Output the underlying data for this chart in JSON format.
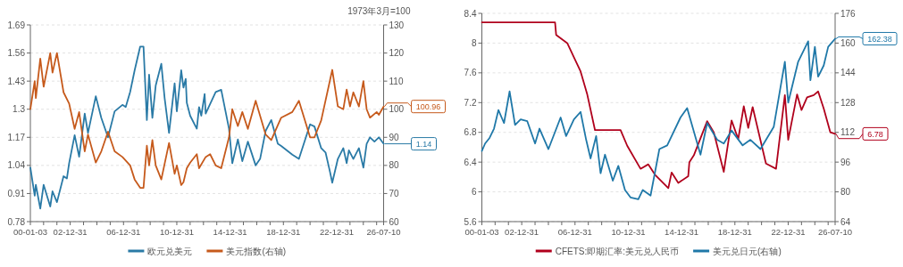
{
  "chart_data": [
    {
      "type": "line",
      "y2label": "1973年3月=100",
      "grid": "y",
      "legend": "bottom",
      "xlim": [
        "2000-01-03",
        "2026-07-10"
      ],
      "xticks": [
        {
          "value": "2000-01-03",
          "label": "00-01-03"
        },
        {
          "value": "2000-12-31",
          "label": null
        },
        {
          "value": "2001-12-31",
          "label": null
        },
        {
          "value": "2002-12-31",
          "label": "02-12-31"
        },
        {
          "value": "2003-12-31",
          "label": null
        },
        {
          "value": "2004-12-31",
          "label": null
        },
        {
          "value": "2005-12-31",
          "label": null
        },
        {
          "value": "2006-12-31",
          "label": "06-12-31"
        },
        {
          "value": "2007-12-31",
          "label": null
        },
        {
          "value": "2008-12-31",
          "label": null
        },
        {
          "value": "2009-12-31",
          "label": null
        },
        {
          "value": "2010-12-31",
          "label": "10-12-31"
        },
        {
          "value": "2011-12-31",
          "label": null
        },
        {
          "value": "2012-12-31",
          "label": null
        },
        {
          "value": "2013-12-31",
          "label": null
        },
        {
          "value": "2014-12-31",
          "label": "14-12-31"
        },
        {
          "value": "2015-12-31",
          "label": null
        },
        {
          "value": "2016-12-31",
          "label": null
        },
        {
          "value": "2017-12-31",
          "label": null
        },
        {
          "value": "2018-12-31",
          "label": "18-12-31"
        },
        {
          "value": "2019-12-31",
          "label": null
        },
        {
          "value": "2020-12-31",
          "label": null
        },
        {
          "value": "2021-12-31",
          "label": null
        },
        {
          "value": "2022-12-31",
          "label": "22-12-31"
        },
        {
          "value": "2023-12-31",
          "label": null
        },
        {
          "value": "2024-12-31",
          "label": null
        },
        {
          "value": "2025-12-31",
          "label": null
        },
        {
          "value": "2026-07-10",
          "label": "26-07-10"
        }
      ],
      "ylim": [
        0.78,
        1.69
      ],
      "yticks": [
        0.78,
        0.91,
        1.04,
        1.17,
        1.3,
        1.43,
        1.56,
        1.69
      ],
      "y2lim": [
        60,
        130
      ],
      "y2ticks": [
        60,
        70,
        80,
        90,
        100,
        110,
        120,
        130
      ],
      "series": [
        {
          "name": "欧元兑美元",
          "color": "#2a7aa6",
          "x": [
            "2000-01-03",
            "2000-05",
            "2000-06",
            "2000-10",
            "2001-01",
            "2001-07",
            "2001-09",
            "2002-01",
            "2002-07",
            "2002-10",
            "2002-12",
            "2003-05",
            "2003-09",
            "2004-02",
            "2004-05",
            "2004-12",
            "2005-05",
            "2005-11",
            "2006-05",
            "2006-12",
            "2007-03",
            "2007-07",
            "2007-11",
            "2008-04",
            "2008-07",
            "2008-10",
            "2008-12",
            "2009-03",
            "2009-06",
            "2009-11",
            "2010-02",
            "2010-06",
            "2010-11",
            "2011-01",
            "2011-05",
            "2011-07",
            "2011-09",
            "2011-10",
            "2012-01",
            "2012-07",
            "2012-09",
            "2012-11",
            "2013-02",
            "2013-03",
            "2013-12",
            "2014-05",
            "2014-12",
            "2015-03",
            "2015-08",
            "2015-12",
            "2016-05",
            "2016-12",
            "2017-04",
            "2017-09",
            "2018-02",
            "2018-08",
            "2018-11",
            "2019-09",
            "2020-03",
            "2021-01",
            "2021-05",
            "2021-11",
            "2022-03",
            "2022-07",
            "2022-09",
            "2023-02",
            "2023-07",
            "2023-10",
            "2023-12",
            "2024-04",
            "2024-09",
            "2025-01",
            "2025-04",
            "2025-07",
            "2025-11",
            "2026-03",
            "2026-07-10"
          ],
          "values": [
            1.03,
            0.9,
            0.95,
            0.84,
            0.95,
            0.85,
            0.92,
            0.87,
            0.99,
            0.98,
            1.05,
            1.18,
            1.08,
            1.28,
            1.19,
            1.36,
            1.26,
            1.17,
            1.29,
            1.32,
            1.31,
            1.38,
            1.48,
            1.59,
            1.59,
            1.25,
            1.46,
            1.26,
            1.41,
            1.51,
            1.35,
            1.19,
            1.42,
            1.29,
            1.48,
            1.4,
            1.44,
            1.33,
            1.27,
            1.21,
            1.31,
            1.27,
            1.37,
            1.28,
            1.38,
            1.39,
            1.21,
            1.05,
            1.16,
            1.06,
            1.15,
            1.04,
            1.07,
            1.2,
            1.25,
            1.14,
            1.13,
            1.09,
            1.07,
            1.23,
            1.22,
            1.12,
            1.1,
            1.01,
            0.96,
            1.07,
            1.12,
            1.05,
            1.11,
            1.07,
            1.12,
            1.03,
            1.14,
            1.17,
            1.15,
            1.17,
            1.14
          ],
          "value_labels": [
            null,
            null,
            null,
            null,
            null,
            null,
            null,
            null,
            null,
            null,
            null,
            null,
            null,
            null,
            null,
            null,
            null,
            null,
            null,
            null,
            null,
            null,
            null,
            null,
            null,
            null,
            null,
            null,
            null,
            null,
            null,
            null,
            null,
            null,
            null,
            null,
            null,
            null,
            null,
            null,
            null,
            null,
            null,
            null,
            null,
            null,
            null,
            null,
            null,
            null,
            null,
            null,
            null,
            null,
            null,
            null,
            null,
            null,
            null,
            null,
            null,
            null,
            null,
            null,
            null,
            null,
            null,
            null,
            null,
            null,
            null,
            null,
            null,
            null,
            null,
            null,
            "1.14"
          ]
        },
        {
          "name": "美元指数(右轴)",
          "color": "#c65a1c",
          "axis": "y2",
          "x": [
            "2000-01-03",
            "2000-05",
            "2000-06",
            "2000-10",
            "2001-01",
            "2001-07",
            "2001-09",
            "2002-01",
            "2002-07",
            "2002-12",
            "2003-05",
            "2003-09",
            "2004-02",
            "2004-05",
            "2004-12",
            "2005-05",
            "2005-11",
            "2006-05",
            "2006-12",
            "2007-07",
            "2007-11",
            "2008-04",
            "2008-07",
            "2008-10",
            "2008-12",
            "2009-03",
            "2009-06",
            "2009-11",
            "2010-06",
            "2010-11",
            "2011-01",
            "2011-05",
            "2011-07",
            "2011-10",
            "2012-01",
            "2012-07",
            "2012-09",
            "2013-03",
            "2013-07",
            "2013-12",
            "2014-05",
            "2014-12",
            "2015-03",
            "2015-08",
            "2015-12",
            "2016-05",
            "2016-12",
            "2017-09",
            "2018-02",
            "2018-11",
            "2019-09",
            "2020-03",
            "2021-01",
            "2021-05",
            "2021-11",
            "2022-09",
            "2023-02",
            "2023-07",
            "2023-10",
            "2024-01",
            "2024-04",
            "2024-09",
            "2025-01",
            "2025-04",
            "2025-07",
            "2026-01",
            "2026-03",
            "2026-07-10"
          ],
          "values": [
            100,
            110,
            104,
            118,
            108,
            120,
            113,
            120,
            106,
            102,
            93,
            99,
            85,
            91,
            81,
            85,
            92,
            85,
            83,
            80,
            75,
            72,
            72,
            87,
            80,
            89,
            80,
            75,
            88,
            77,
            80,
            73,
            74,
            79,
            81,
            84,
            79,
            83,
            84,
            80,
            79,
            90,
            100,
            94,
            99,
            93,
            103,
            91,
            89,
            97,
            99,
            103,
            90,
            90,
            96,
            114,
            101,
            100,
            107,
            101,
            106,
            101,
            110,
            100,
            97,
            99,
            98,
            100.96
          ],
          "value_labels": [
            null,
            null,
            null,
            null,
            null,
            null,
            null,
            null,
            null,
            null,
            null,
            null,
            null,
            null,
            null,
            null,
            null,
            null,
            null,
            null,
            null,
            null,
            null,
            null,
            null,
            null,
            null,
            null,
            null,
            null,
            null,
            null,
            null,
            null,
            null,
            null,
            null,
            null,
            null,
            null,
            null,
            null,
            null,
            null,
            null,
            null,
            null,
            null,
            null,
            null,
            null,
            null,
            null,
            null,
            null,
            null,
            null,
            null,
            null,
            null,
            null,
            null,
            null,
            null,
            null,
            null,
            null,
            "100.96"
          ]
        }
      ]
    },
    {
      "type": "line",
      "grid": "y",
      "legend": "bottom",
      "xlim": [
        "2000-01-03",
        "2026-07-10"
      ],
      "xticks": [
        {
          "value": "2000-01-03",
          "label": "00-01-03"
        },
        {
          "value": "2000-12-31",
          "label": null
        },
        {
          "value": "2001-12-31",
          "label": null
        },
        {
          "value": "2002-12-31",
          "label": "02-12-31"
        },
        {
          "value": "2003-12-31",
          "label": null
        },
        {
          "value": "2004-12-31",
          "label": null
        },
        {
          "value": "2005-12-31",
          "label": null
        },
        {
          "value": "2006-12-31",
          "label": "06-12-31"
        },
        {
          "value": "2007-12-31",
          "label": null
        },
        {
          "value": "2008-12-31",
          "label": null
        },
        {
          "value": "2009-12-31",
          "label": null
        },
        {
          "value": "2010-12-31",
          "label": "10-12-31"
        },
        {
          "value": "2011-12-31",
          "label": null
        },
        {
          "value": "2012-12-31",
          "label": null
        },
        {
          "value": "2013-12-31",
          "label": null
        },
        {
          "value": "2014-12-31",
          "label": "14-12-31"
        },
        {
          "value": "2015-12-31",
          "label": null
        },
        {
          "value": "2016-12-31",
          "label": null
        },
        {
          "value": "2017-12-31",
          "label": null
        },
        {
          "value": "2018-12-31",
          "label": "18-12-31"
        },
        {
          "value": "2019-12-31",
          "label": null
        },
        {
          "value": "2020-12-31",
          "label": null
        },
        {
          "value": "2021-12-31",
          "label": null
        },
        {
          "value": "2022-12-31",
          "label": "22-12-31"
        },
        {
          "value": "2023-12-31",
          "label": null
        },
        {
          "value": "2024-12-31",
          "label": null
        },
        {
          "value": "2025-12-31",
          "label": null
        },
        {
          "value": "2026-07-10",
          "label": "26-07-10"
        }
      ],
      "ylim": [
        5.6,
        8.4
      ],
      "yticks": [
        5.6,
        6,
        6.4,
        6.8,
        7.2,
        7.6,
        8,
        8.4
      ],
      "y2lim": [
        64,
        176
      ],
      "y2ticks": [
        64,
        80,
        96,
        112,
        128,
        144,
        160,
        176
      ],
      "series": [
        {
          "name": "CFETS:即期汇率:美元兑人民币",
          "color": "#b0001c",
          "x": [
            "2000-01-03",
            "2005-07",
            "2005-08",
            "2006-06",
            "2006-12",
            "2007-06",
            "2007-12",
            "2008-07",
            "2010-06",
            "2010-12",
            "2011-12",
            "2012-07",
            "2013-01",
            "2014-01",
            "2014-04",
            "2014-10",
            "2015-07",
            "2015-08",
            "2015-12",
            "2016-12",
            "2017-06",
            "2018-03",
            "2018-10",
            "2019-04",
            "2019-09",
            "2020-01",
            "2020-05",
            "2021-05",
            "2022-02",
            "2022-10",
            "2023-01",
            "2023-09",
            "2024-01",
            "2024-06",
            "2024-12",
            "2025-04",
            "2025-09",
            "2026-03",
            "2026-07-10"
          ],
          "values": [
            8.28,
            8.28,
            8.11,
            8.0,
            7.81,
            7.62,
            7.31,
            6.83,
            6.83,
            6.62,
            6.31,
            6.37,
            6.23,
            6.05,
            6.26,
            6.12,
            6.21,
            6.4,
            6.49,
            6.95,
            6.8,
            6.27,
            6.96,
            6.71,
            7.15,
            6.86,
            7.14,
            6.38,
            6.31,
            7.3,
            6.7,
            7.31,
            7.1,
            7.27,
            7.3,
            7.35,
            7.12,
            6.8,
            6.78
          ],
          "value_labels": [
            null,
            null,
            null,
            null,
            null,
            null,
            null,
            null,
            null,
            null,
            null,
            null,
            null,
            null,
            null,
            null,
            null,
            null,
            null,
            null,
            null,
            null,
            null,
            null,
            null,
            null,
            null,
            null,
            null,
            null,
            null,
            null,
            null,
            null,
            null,
            null,
            null,
            null,
            "6.78"
          ]
        },
        {
          "name": "美元兑日元(右轴)",
          "color": "#1f78a8",
          "axis": "y2",
          "x": [
            "2000-01-03",
            "2000-04",
            "2000-08",
            "2000-12",
            "2001-04",
            "2001-09",
            "2002-02",
            "2002-07",
            "2002-12",
            "2003-06",
            "2004-01",
            "2004-05",
            "2005-01",
            "2005-12",
            "2006-05",
            "2006-12",
            "2007-06",
            "2007-11",
            "2008-03",
            "2008-08",
            "2008-12",
            "2009-04",
            "2009-11",
            "2010-04",
            "2010-10",
            "2011-03",
            "2011-10",
            "2012-02",
            "2012-09",
            "2013-05",
            "2013-12",
            "2014-12",
            "2015-06",
            "2016-06",
            "2016-12",
            "2017-09",
            "2018-03",
            "2018-10",
            "2019-08",
            "2020-03",
            "2020-12",
            "2021-12",
            "2022-10",
            "2023-01",
            "2023-10",
            "2024-07",
            "2024-09",
            "2025-01",
            "2025-04",
            "2025-09",
            "2026-01",
            "2026-07-10"
          ],
          "values": [
            102,
            106,
            109,
            114,
            124,
            117,
            134,
            116,
            119,
            118,
            106,
            114,
            103,
            120,
            110,
            119,
            123,
            108,
            98,
            110,
            90,
            100,
            86,
            94,
            81,
            77,
            76,
            81,
            78,
            103,
            105,
            120,
            125,
            100,
            117,
            108,
            106,
            113,
            105,
            108,
            103,
            115,
            150,
            128,
            150,
            161,
            140,
            158,
            142,
            148,
            158,
            162.38
          ],
          "value_labels": [
            null,
            null,
            null,
            null,
            null,
            null,
            null,
            null,
            null,
            null,
            null,
            null,
            null,
            null,
            null,
            null,
            null,
            null,
            null,
            null,
            null,
            null,
            null,
            null,
            null,
            null,
            null,
            null,
            null,
            null,
            null,
            null,
            null,
            null,
            null,
            null,
            null,
            null,
            null,
            null,
            null,
            null,
            null,
            null,
            null,
            null,
            null,
            null,
            null,
            null,
            null,
            "162.38"
          ]
        }
      ]
    }
  ]
}
